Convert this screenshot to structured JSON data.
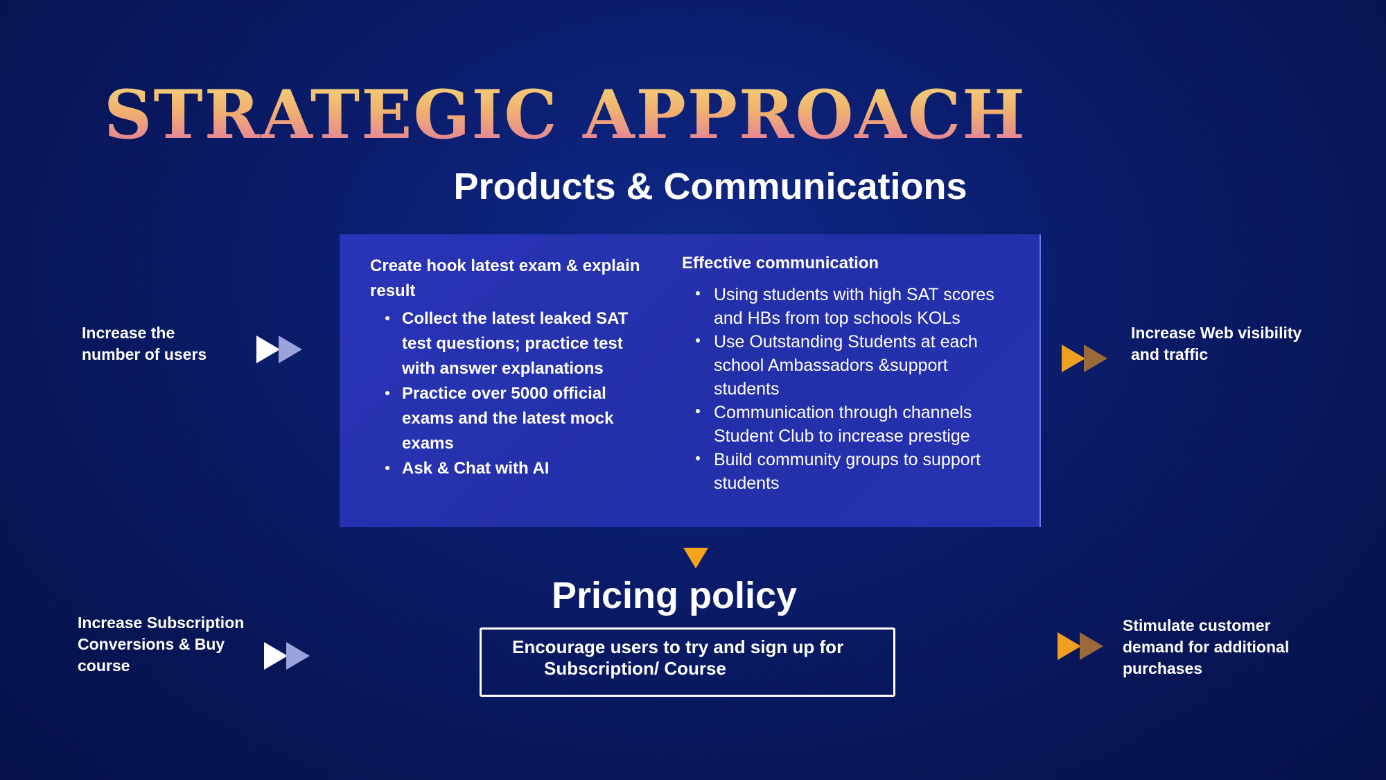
{
  "header": {
    "corner_text": "",
    "title": "STRATEGIC APPROACH",
    "subtitle": "Products & Communications"
  },
  "products_box": {
    "left_column": {
      "heading": "Create hook latest exam & explain result",
      "bullets": [
        "Collect the latest leaked SAT test questions; practice test with answer explanations",
        "Practice over 5000 official exams and the latest mock exams",
        "Ask & Chat with AI"
      ]
    },
    "right_column": {
      "heading": "Effective communication",
      "bullets": [
        "Using students with high SAT scores and HBs from top schools KOLs",
        "Use Outstanding Students at each school Ambassadors &support students",
        "Communication through channels Student Club to increase prestige",
        "Build community groups to support students"
      ]
    }
  },
  "goals": {
    "top_left": "Increase the number of users",
    "top_right": "Increase Web visibility and traffic",
    "bottom_left": "Increase Subscription Conversions & Buy course",
    "bottom_right": "Stimulate customer demand for additional purchases"
  },
  "pricing": {
    "title": "Pricing policy",
    "box_line1": "Encourage users to try and sign up for",
    "box_line2": "Subscription/ Course"
  },
  "colors": {
    "background": "#0b1d6e",
    "box": "#2430a8",
    "accent_orange": "#f0a020",
    "title_gradient_top": "#f3d27a",
    "title_gradient_bottom": "#e27aa0"
  },
  "icons": {
    "left_arrows": "double-play-arrow-icon-white",
    "right_arrows": "double-play-arrow-icon-orange",
    "down_arrow": "down-triangle-icon"
  }
}
